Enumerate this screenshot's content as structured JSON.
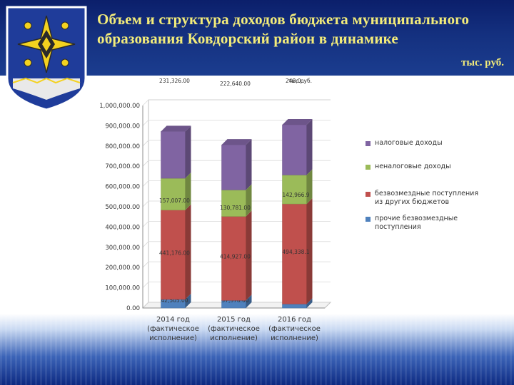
{
  "header": {
    "title": "Объем и структура доходов бюджета муниципального образования Ковдорский район в динамике",
    "units": "тыс. руб."
  },
  "colors": {
    "header_bg": "#14307f",
    "title_text": "#f3ec7a",
    "series_prochie": "#4f81bd",
    "series_bezvozmezdnye": "#c0504d",
    "series_nenalogovye": "#9bbb59",
    "series_nalogovye": "#8064a2"
  },
  "icons": {
    "crest": "kovdor-district-coat-of-arms-icon"
  },
  "chart_data": {
    "type": "bar",
    "stacked": true,
    "three_d": true,
    "categories": [
      "2014 год (фактическое исполнение)",
      "2015 год (фактическое исполнение)",
      "2016 год (фактическое исполнение)"
    ],
    "category_lines": [
      [
        "2014 год",
        "(фактическое",
        "исполнение)"
      ],
      [
        "2015 год",
        "(фактическое",
        "исполнение)"
      ],
      [
        "2016 год",
        "(фактическое",
        "исполнение)"
      ]
    ],
    "series": [
      {
        "name": "прочие безвозмездные поступления",
        "values": [
          42505.0,
          37378.0,
          19608.0
        ],
        "labels": [
          "42,505.00",
          "37,378.00",
          "19,608.00"
        ]
      },
      {
        "name": "безвозмездные поступления из других бюджетов",
        "values": [
          441176.0,
          414927.0,
          494338.1
        ],
        "labels": [
          "441,176.00",
          "414,927.00",
          "494,338.1"
        ]
      },
      {
        "name": "неналоговые доходы",
        "values": [
          157007.0,
          130781.0,
          142966.9
        ],
        "labels": [
          "157,007.00",
          "130,781.00",
          "142,966.9"
        ]
      },
      {
        "name": "налоговые доходы",
        "values": [
          231326.0,
          222640.0,
          248000.0
        ],
        "labels": [
          "231,326.00",
          "222,640.00",
          "248,0…"
        ]
      }
    ],
    "top_label_overlap_text": "тыс.руб.",
    "y_ticks": [
      "0.00",
      "100,000.00",
      "200,000.00",
      "300,000.00",
      "400,000.00",
      "500,000.00",
      "600,000.00",
      "700,000.00",
      "800,000.00",
      "900,000.00",
      "1,000,000.00"
    ],
    "ylim": [
      0,
      1000000
    ],
    "legend_placement": "right",
    "legend_order": [
      [
        "налоговые доходы"
      ],
      [
        "неналоговые доходы"
      ],
      [
        "безвозмездные поступления",
        "из других бюджетов"
      ],
      [
        "прочие безвозмездные",
        "поступления"
      ]
    ]
  }
}
